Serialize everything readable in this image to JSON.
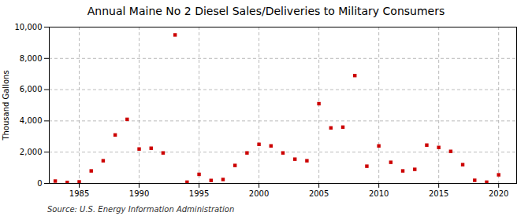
{
  "chart_data": {
    "type": "scatter",
    "title": "Annual Maine No 2 Diesel Sales/Deliveries to Military Consumers",
    "ylabel": "Thousand Gallons",
    "source": "Source: U.S. Energy Information Administration",
    "x": [
      1983,
      1984,
      1985,
      1986,
      1987,
      1988,
      1989,
      1990,
      1991,
      1992,
      1993,
      1994,
      1995,
      1996,
      1997,
      1998,
      1999,
      2000,
      2001,
      2002,
      2003,
      2004,
      2005,
      2006,
      2007,
      2008,
      2009,
      2010,
      2011,
      2012,
      2013,
      2014,
      2015,
      2016,
      2017,
      2018,
      2019,
      2020
    ],
    "values": [
      150,
      60,
      100,
      800,
      1450,
      3100,
      4100,
      2200,
      2250,
      1950,
      9500,
      80,
      580,
      190,
      250,
      1150,
      1950,
      2500,
      2400,
      1950,
      1550,
      1450,
      5100,
      3550,
      3600,
      6900,
      1100,
      2400,
      1350,
      800,
      900,
      2450,
      2300,
      2050,
      1200,
      200,
      80,
      550
    ],
    "color": "#cc0000",
    "marker": "square",
    "xlim": [
      1982.5,
      2021.5
    ],
    "xticks": [
      1985,
      1990,
      1995,
      2000,
      2005,
      2010,
      2015,
      2020
    ],
    "ylim": [
      0,
      10000
    ],
    "yticks": [
      0,
      {
        "value": 2000,
        "label": "2,000"
      },
      {
        "value": 4000,
        "label": "4,000"
      },
      {
        "value": 6000,
        "label": "6,000"
      },
      {
        "value": 8000,
        "label": "8,000"
      },
      {
        "value": 10000,
        "label": "10,000"
      }
    ],
    "grid": true
  }
}
